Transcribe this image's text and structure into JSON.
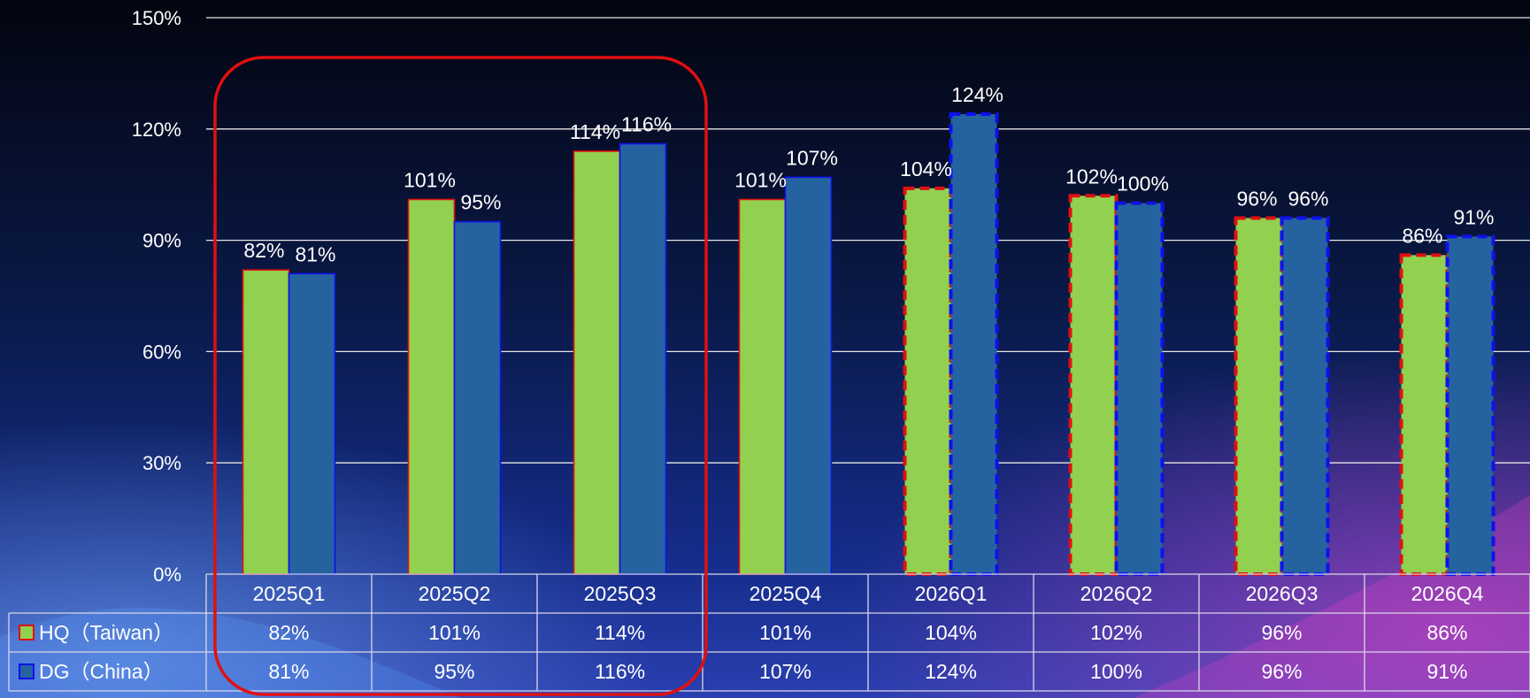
{
  "chart_data": {
    "type": "bar",
    "title": "",
    "xlabel": "",
    "ylabel": "",
    "ylim": [
      0,
      150
    ],
    "yticks": [
      0,
      30,
      60,
      90,
      120,
      150
    ],
    "ytick_labels": [
      "0%",
      "30%",
      "60%",
      "90%",
      "120%",
      "150%"
    ],
    "grid": true,
    "legend_placement": "data-table-left",
    "categories": [
      "2025Q1",
      "2025Q2",
      "2025Q3",
      "2025Q4",
      "2026Q1",
      "2026Q2",
      "2026Q3",
      "2026Q4"
    ],
    "series": [
      {
        "name": "HQ（Taiwan）",
        "color": "#92d050",
        "border": "#e01010",
        "values": [
          82,
          101,
          114,
          101,
          104,
          102,
          96,
          86
        ],
        "labels": [
          "82%",
          "101%",
          "114%",
          "101%",
          "104%",
          "102%",
          "96%",
          "86%"
        ]
      },
      {
        "name": "DG（China）",
        "color": "#2563a0",
        "border": "#1010ee",
        "values": [
          81,
          95,
          116,
          107,
          124,
          100,
          96,
          91
        ],
        "labels": [
          "81%",
          "95%",
          "116%",
          "107%",
          "124%",
          "100%",
          "96%",
          "91%"
        ]
      }
    ],
    "projected_from_category": "2026Q1",
    "highlight_categories": [
      "2025Q1",
      "2025Q2",
      "2025Q3"
    ],
    "highlight_color": "#e01010"
  }
}
